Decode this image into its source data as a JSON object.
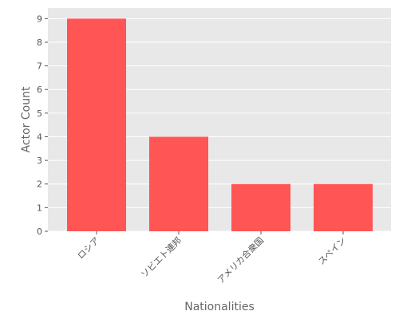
{
  "chart_data": {
    "type": "bar",
    "categories": [
      "ロシア",
      "ソビエト連邦",
      "アメリカ合衆国",
      "スペイン"
    ],
    "values": [
      9,
      4,
      2,
      2
    ],
    "color": "#ff5555",
    "x_label": "Nationalities",
    "y_label": "Actor Count",
    "ylim": [
      0,
      9.45
    ],
    "yticks": [
      0,
      1,
      2,
      3,
      4,
      5,
      6,
      7,
      8,
      9
    ],
    "grid": true
  }
}
